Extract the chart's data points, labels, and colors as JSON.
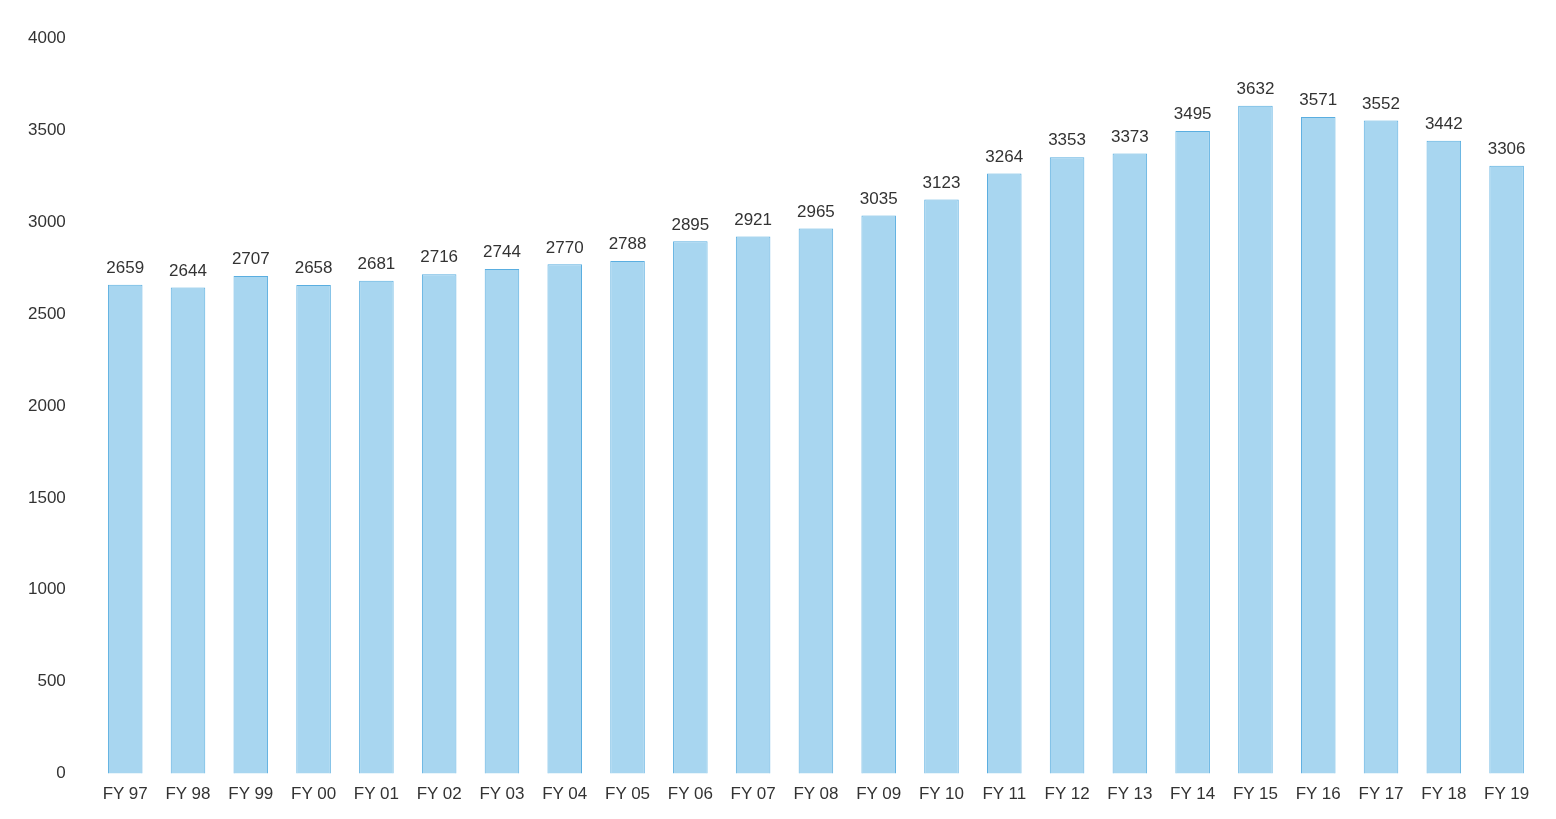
{
  "chart_data": {
    "type": "bar",
    "categories": [
      "FY 97",
      "FY 98",
      "FY 99",
      "FY 00",
      "FY 01",
      "FY 02",
      "FY 03",
      "FY 04",
      "FY 05",
      "FY 06",
      "FY 07",
      "FY 08",
      "FY 09",
      "FY 10",
      "FY 11",
      "FY 12",
      "FY 13",
      "FY 14",
      "FY 15",
      "FY 16",
      "FY 17",
      "FY 18",
      "FY 19"
    ],
    "values": [
      2659,
      2644,
      2707,
      2658,
      2681,
      2716,
      2744,
      2770,
      2788,
      2895,
      2921,
      2965,
      3035,
      3123,
      3264,
      3353,
      3373,
      3495,
      3632,
      3571,
      3552,
      3442,
      3306
    ],
    "color": "#a8d6f0",
    "ylim": [
      0,
      4000
    ],
    "yticks": [
      0,
      500,
      1000,
      1500,
      2000,
      2500,
      3000,
      3500,
      4000
    ],
    "data_labels": true
  }
}
